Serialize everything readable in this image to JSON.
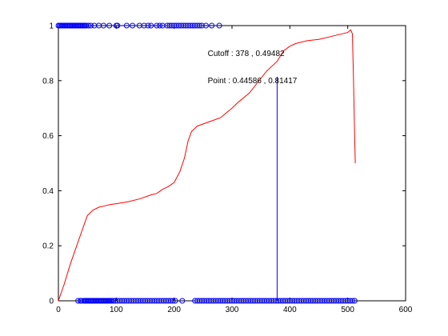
{
  "chart_data": {
    "type": "line",
    "title": "",
    "xlabel": "",
    "ylabel": "",
    "xlim": [
      0,
      600
    ],
    "ylim": [
      0,
      1
    ],
    "x_ticks": [
      "0",
      "100",
      "200",
      "300",
      "400",
      "500",
      "600"
    ],
    "y_ticks": [
      "0",
      "0.2",
      "0.4",
      "0.6",
      "0.8",
      "1"
    ],
    "grid": false,
    "legend": "none",
    "colors": {
      "curve": "#ff0000",
      "markers": "#0000ff",
      "cutoff": "#0000ff",
      "axes": "#000000"
    },
    "series": [
      {
        "type": "line",
        "points": [
          [
            0,
            0.0
          ],
          [
            10,
            0.06
          ],
          [
            20,
            0.13
          ],
          [
            30,
            0.19
          ],
          [
            40,
            0.25
          ],
          [
            50,
            0.31
          ],
          [
            60,
            0.33
          ],
          [
            70,
            0.34
          ],
          [
            80,
            0.345
          ],
          [
            90,
            0.35
          ],
          [
            100,
            0.353
          ],
          [
            120,
            0.36
          ],
          [
            140,
            0.37
          ],
          [
            160,
            0.385
          ],
          [
            170,
            0.39
          ],
          [
            180,
            0.405
          ],
          [
            190,
            0.415
          ],
          [
            200,
            0.43
          ],
          [
            210,
            0.47
          ],
          [
            218,
            0.52
          ],
          [
            224,
            0.58
          ],
          [
            230,
            0.615
          ],
          [
            240,
            0.635
          ],
          [
            260,
            0.65
          ],
          [
            280,
            0.665
          ],
          [
            300,
            0.7
          ],
          [
            310,
            0.72
          ],
          [
            330,
            0.755
          ],
          [
            345,
            0.795
          ],
          [
            360,
            0.835
          ],
          [
            378,
            0.87
          ],
          [
            385,
            0.895
          ],
          [
            390,
            0.91
          ],
          [
            400,
            0.925
          ],
          [
            410,
            0.935
          ],
          [
            430,
            0.945
          ],
          [
            450,
            0.95
          ],
          [
            470,
            0.96
          ],
          [
            490,
            0.97
          ],
          [
            500,
            0.975
          ],
          [
            505,
            0.985
          ],
          [
            508,
            0.97
          ],
          [
            510,
            0.8
          ],
          [
            512,
            0.6
          ],
          [
            513,
            0.5
          ]
        ]
      },
      {
        "type": "scatter",
        "name": "",
        "y": 1,
        "x": [
          0,
          2,
          4,
          6,
          8,
          10,
          12,
          14,
          16,
          18,
          20,
          22,
          24,
          26,
          28,
          30,
          32,
          34,
          36,
          38,
          40,
          42,
          44,
          46,
          48,
          52,
          56,
          62,
          70,
          78,
          88,
          100,
          102,
          118,
          128,
          140,
          148,
          155,
          160,
          170,
          175,
          180,
          188,
          192,
          196,
          200,
          204,
          208,
          212,
          216,
          220,
          224,
          228,
          232,
          236,
          240,
          244,
          248,
          255,
          265,
          278
        ]
      },
      {
        "type": "scatter",
        "name": "",
        "y": 0,
        "x": [
          34,
          38,
          40,
          44,
          46,
          48,
          50,
          52,
          54,
          56,
          58,
          60,
          62,
          64,
          66,
          68,
          70,
          72,
          74,
          76,
          78,
          80,
          82,
          84,
          86,
          88,
          90,
          92,
          95,
          98,
          102,
          106,
          110,
          114,
          118,
          122,
          126,
          130,
          134,
          138,
          142,
          146,
          150,
          154,
          158,
          162,
          166,
          170,
          174,
          178,
          182,
          186,
          190,
          194,
          198,
          202,
          214,
          236,
          240,
          244,
          248,
          252,
          256,
          260,
          264,
          268,
          272,
          276,
          280,
          284,
          288,
          292,
          296,
          300,
          304,
          308,
          312,
          316,
          320,
          324,
          328,
          332,
          336,
          340,
          344,
          348,
          352,
          356,
          360,
          364,
          368,
          372,
          376,
          380,
          384,
          388,
          392,
          396,
          400,
          404,
          408,
          412,
          416,
          420,
          424,
          428,
          432,
          436,
          440,
          444,
          448,
          452,
          456,
          460,
          464,
          468,
          472,
          476,
          480,
          484,
          488,
          492,
          496,
          500,
          504,
          508,
          512
        ]
      }
    ],
    "cutoff_line": {
      "x": 378,
      "y_from": 0,
      "y_to": 0.81417
    },
    "annotations": [
      {
        "text": "Cutoff : 378 , 0.49482",
        "x": 258,
        "y": 0.89
      },
      {
        "text": "Point : 0.44586 , 0.81417",
        "x": 258,
        "y": 0.79
      }
    ]
  }
}
